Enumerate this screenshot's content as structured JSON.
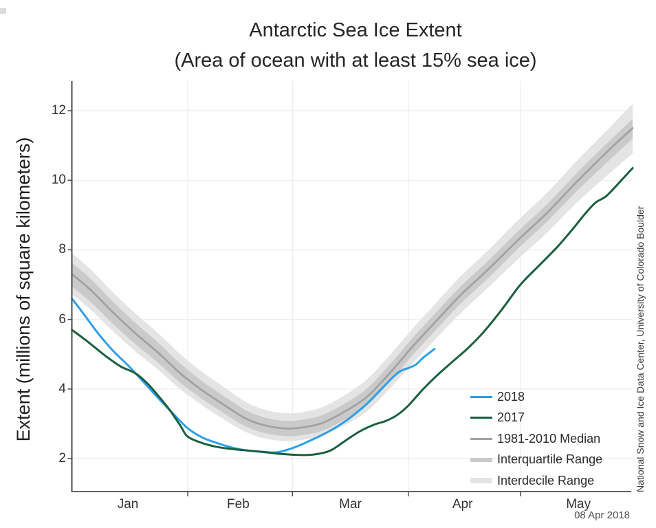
{
  "title": {
    "line1": "Antarctic Sea Ice Extent",
    "line2": "(Area of ocean with at least 15% sea ice)"
  },
  "y_axis": {
    "label": "Extent (millions of square kilometers)",
    "ticks": [
      2,
      4,
      6,
      8,
      10,
      12
    ]
  },
  "x_axis": {
    "month_labels": [
      "Jan",
      "Feb",
      "Mar",
      "Apr",
      "May"
    ]
  },
  "credit": "National Snow and Ice Data Center, University of Colorado Boulder",
  "date_stamp": "08 Apr 2018",
  "colors": {
    "line_2018": "#2d9fe8",
    "line_2017": "#1a5f3e",
    "median": "#a2a2a2",
    "iqr_band": "#cacaca",
    "idr_band": "#e4e4e4",
    "grid": "#eeeeee",
    "axis": "#4a4a4a",
    "text": "#333333"
  },
  "legend": [
    {
      "label": "2018",
      "type": "line",
      "color": "#2d9fe8",
      "thickness": 3
    },
    {
      "label": "2017",
      "type": "line",
      "color": "#1a5f3e",
      "thickness": 3
    },
    {
      "label": "1981-2010 Median",
      "type": "line",
      "color": "#a2a2a2",
      "thickness": 3
    },
    {
      "label": "Interquartile Range",
      "type": "band",
      "color": "#cacaca",
      "thickness": 6
    },
    {
      "label": "Interdecile Range",
      "type": "band",
      "color": "#e4e4e4",
      "thickness": 8
    }
  ],
  "chart_data": {
    "type": "line",
    "title": "Antarctic Sea Ice Extent",
    "subtitle": "(Area of ocean with at least 15% sea ice)",
    "ylabel": "Extent (millions of square kilometers)",
    "x_unit": "day_of_year",
    "xlim": [
      1,
      151
    ],
    "ylim": [
      1.05,
      12.85
    ],
    "y_ticks": [
      2,
      4,
      6,
      8,
      10,
      12
    ],
    "grid": true,
    "legend_position": "lower right",
    "month_labels": [
      "Jan",
      "Feb",
      "Mar",
      "Apr",
      "May"
    ],
    "month_label_days": [
      16,
      45.5,
      75.5,
      105.5,
      136.5
    ],
    "month_tick_days": [
      32,
      60,
      91,
      121
    ],
    "series": [
      {
        "name": "2018",
        "color": "#2d9fe8",
        "x": [
          1,
          4,
          8,
          12,
          16,
          20,
          24,
          28,
          32,
          36,
          40,
          44,
          48,
          52,
          56,
          60,
          64,
          68,
          72,
          76,
          80,
          84,
          87,
          89,
          91,
          93,
          95,
          98
        ],
        "values": [
          6.6,
          6.18,
          5.6,
          5.1,
          4.68,
          4.22,
          3.75,
          3.3,
          2.87,
          2.6,
          2.44,
          2.31,
          2.23,
          2.19,
          2.18,
          2.3,
          2.48,
          2.68,
          2.92,
          3.22,
          3.58,
          4.02,
          4.35,
          4.52,
          4.6,
          4.7,
          4.9,
          5.15
        ]
      },
      {
        "name": "2017",
        "color": "#1a5f3e",
        "x": [
          1,
          5,
          10,
          14,
          18,
          21,
          24,
          27,
          30,
          32,
          36,
          40,
          44,
          48,
          52,
          56,
          60,
          63,
          66,
          70,
          74,
          78,
          82,
          85,
          88,
          91,
          95,
          99,
          103,
          107,
          111,
          116,
          121,
          126,
          131,
          135,
          138,
          141,
          144,
          148,
          151
        ],
        "values": [
          5.7,
          5.38,
          4.95,
          4.65,
          4.45,
          4.18,
          3.82,
          3.42,
          2.95,
          2.63,
          2.44,
          2.33,
          2.27,
          2.23,
          2.19,
          2.14,
          2.11,
          2.1,
          2.12,
          2.22,
          2.5,
          2.78,
          2.98,
          3.08,
          3.25,
          3.52,
          4.0,
          4.42,
          4.8,
          5.18,
          5.62,
          6.28,
          7.0,
          7.55,
          8.1,
          8.6,
          9.0,
          9.35,
          9.55,
          10.0,
          10.35
        ]
      },
      {
        "name": "1981-2010 Median",
        "color": "#a2a2a2",
        "x": [
          1,
          6,
          12,
          18,
          24,
          30,
          36,
          42,
          47,
          51,
          55,
          59,
          63,
          68,
          74,
          80,
          86,
          92,
          98,
          105,
          112,
          121,
          128,
          136,
          144,
          151
        ],
        "values": [
          7.3,
          6.85,
          6.2,
          5.6,
          5.05,
          4.45,
          3.95,
          3.52,
          3.18,
          3.0,
          2.9,
          2.86,
          2.9,
          3.02,
          3.35,
          3.78,
          4.45,
          5.2,
          5.9,
          6.7,
          7.4,
          8.35,
          9.05,
          9.95,
          10.8,
          11.5
        ]
      }
    ],
    "bands": [
      {
        "name": "Interdecile Range",
        "color": "#e4e4e4",
        "x": [
          1,
          6,
          12,
          18,
          24,
          30,
          36,
          42,
          47,
          51,
          55,
          59,
          63,
          68,
          74,
          80,
          86,
          92,
          98,
          105,
          112,
          121,
          128,
          136,
          144,
          151
        ],
        "upper": [
          7.9,
          7.44,
          6.78,
          6.17,
          5.61,
          5.0,
          4.48,
          4.03,
          3.66,
          3.46,
          3.34,
          3.3,
          3.34,
          3.48,
          3.82,
          4.28,
          4.97,
          5.72,
          6.42,
          7.24,
          7.95,
          8.92,
          9.63,
          10.55,
          11.42,
          12.2
        ],
        "lower": [
          6.72,
          6.28,
          5.66,
          5.08,
          4.56,
          3.99,
          3.52,
          3.1,
          2.79,
          2.62,
          2.53,
          2.5,
          2.54,
          2.66,
          2.96,
          3.36,
          4.0,
          4.72,
          5.4,
          6.18,
          6.88,
          7.8,
          8.48,
          9.35,
          10.12,
          10.77
        ]
      },
      {
        "name": "Interquartile Range",
        "color": "#cacaca",
        "x": [
          1,
          6,
          12,
          18,
          24,
          30,
          36,
          42,
          47,
          51,
          55,
          59,
          63,
          68,
          74,
          80,
          86,
          92,
          98,
          105,
          112,
          121,
          128,
          136,
          144,
          151
        ],
        "upper": [
          7.63,
          7.17,
          6.51,
          5.9,
          5.34,
          4.73,
          4.21,
          3.77,
          3.42,
          3.23,
          3.12,
          3.08,
          3.12,
          3.25,
          3.58,
          4.02,
          4.7,
          5.45,
          6.15,
          6.95,
          7.65,
          8.6,
          9.3,
          10.2,
          11.05,
          11.76
        ],
        "lower": [
          6.94,
          6.5,
          5.87,
          5.29,
          4.76,
          4.18,
          3.7,
          3.28,
          2.95,
          2.78,
          2.68,
          2.64,
          2.68,
          2.8,
          3.12,
          3.54,
          4.2,
          4.95,
          5.65,
          6.45,
          7.15,
          8.1,
          8.8,
          9.68,
          10.5,
          11.2
        ]
      }
    ]
  }
}
